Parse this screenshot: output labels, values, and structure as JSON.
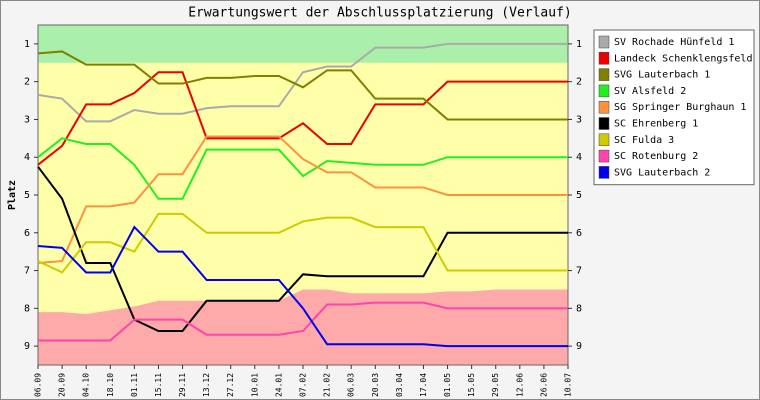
{
  "chart_data": {
    "type": "line",
    "title": "Erwartungswert der Abschlussplatzierung (Verlauf)",
    "y_label": "Platz",
    "categories": [
      "06.09",
      "20.09",
      "04.10",
      "18.10",
      "01.11",
      "15.11",
      "29.11",
      "13.12",
      "27.12",
      "10.01",
      "24.01",
      "07.02",
      "21.02",
      "06.03",
      "20.03",
      "03.04",
      "17.04",
      "01.05",
      "15.05",
      "29.05",
      "12.06",
      "26.06",
      "10.07"
    ],
    "ylim": [
      9.5,
      0.5
    ],
    "yticks": [
      1,
      2,
      3,
      4,
      5,
      6,
      7,
      8,
      9
    ],
    "inverted": true,
    "legend": "upper right",
    "promotion_limit": 1.5,
    "relegation_boundary": [
      8.1,
      8.1,
      8.15,
      8.05,
      7.95,
      7.8,
      7.8,
      7.8,
      7.8,
      7.8,
      7.8,
      7.5,
      7.5,
      7.6,
      7.6,
      7.6,
      7.6,
      7.55,
      7.55,
      7.5,
      7.5,
      7.5,
      7.5
    ],
    "zone_colors": {
      "promotion": "#aaf0aa",
      "middle": "#ffffaa",
      "relegation": "#ffaaaa"
    },
    "series": [
      {
        "name": "SV Rochade Hünfeld 1",
        "color": "#aaaaaa",
        "values": [
          2.35,
          2.45,
          3.05,
          3.05,
          2.75,
          2.85,
          2.85,
          2.7,
          2.65,
          2.65,
          2.65,
          1.75,
          1.6,
          1.6,
          1.1,
          1.1,
          1.1,
          1.0,
          1.0,
          1.0,
          1.0,
          1.0,
          1.0
        ]
      },
      {
        "name": "Landeck Schenklengsfeld",
        "color": "#ee0000",
        "values": [
          4.2,
          3.7,
          2.6,
          2.6,
          2.3,
          1.75,
          1.75,
          3.5,
          3.5,
          3.5,
          3.5,
          3.1,
          3.65,
          3.65,
          2.6,
          2.6,
          2.6,
          2.0,
          2.0,
          2.0,
          2.0,
          2.0,
          2.0
        ]
      },
      {
        "name": "SVG Lauterbach 1",
        "color": "#808000",
        "values": [
          1.25,
          1.2,
          1.55,
          1.55,
          1.55,
          2.05,
          2.05,
          1.9,
          1.9,
          1.85,
          1.85,
          2.15,
          1.7,
          1.7,
          2.45,
          2.45,
          2.45,
          3.0,
          3.0,
          3.0,
          3.0,
          3.0,
          3.0
        ]
      },
      {
        "name": "SV Alsfeld 2",
        "color": "#22ee22",
        "values": [
          4.0,
          3.5,
          3.65,
          3.65,
          4.2,
          5.1,
          5.1,
          3.8,
          3.8,
          3.8,
          3.8,
          4.5,
          4.1,
          4.15,
          4.2,
          4.2,
          4.2,
          4.0,
          4.0,
          4.0,
          4.0,
          4.0,
          4.0
        ]
      },
      {
        "name": "SG Springer Burghaun 1",
        "color": "#ff9040",
        "values": [
          6.8,
          6.75,
          5.3,
          5.3,
          5.2,
          4.45,
          4.45,
          3.45,
          3.45,
          3.45,
          3.45,
          4.05,
          4.4,
          4.4,
          4.8,
          4.8,
          4.8,
          5.0,
          5.0,
          5.0,
          5.0,
          5.0,
          5.0
        ]
      },
      {
        "name": "SC Ehrenberg 1",
        "color": "#000000",
        "values": [
          4.25,
          5.1,
          6.8,
          6.8,
          8.3,
          8.6,
          8.6,
          7.8,
          7.8,
          7.8,
          7.8,
          7.1,
          7.15,
          7.15,
          7.15,
          7.15,
          7.15,
          6.0,
          6.0,
          6.0,
          6.0,
          6.0,
          6.0
        ]
      },
      {
        "name": "SC Fulda 3",
        "color": "#cccc00",
        "values": [
          6.75,
          7.05,
          6.25,
          6.25,
          6.5,
          5.5,
          5.5,
          6.0,
          6.0,
          6.0,
          6.0,
          5.7,
          5.6,
          5.6,
          5.85,
          5.85,
          5.85,
          7.0,
          7.0,
          7.0,
          7.0,
          7.0,
          7.0
        ]
      },
      {
        "name": "SC Rotenburg 2",
        "color": "#ff44aa",
        "values": [
          8.85,
          8.85,
          8.85,
          8.85,
          8.3,
          8.3,
          8.3,
          8.7,
          8.7,
          8.7,
          8.7,
          8.6,
          7.9,
          7.9,
          7.85,
          7.85,
          7.85,
          8.0,
          8.0,
          8.0,
          8.0,
          8.0,
          8.0
        ]
      },
      {
        "name": "SVG Lauterbach 2",
        "color": "#0000ee",
        "values": [
          6.35,
          6.4,
          7.05,
          7.05,
          5.85,
          6.5,
          6.5,
          7.25,
          7.25,
          7.25,
          7.25,
          8.0,
          8.95,
          8.95,
          8.95,
          8.95,
          8.95,
          9.0,
          9.0,
          9.0,
          9.0,
          9.0,
          9.0
        ]
      }
    ]
  }
}
